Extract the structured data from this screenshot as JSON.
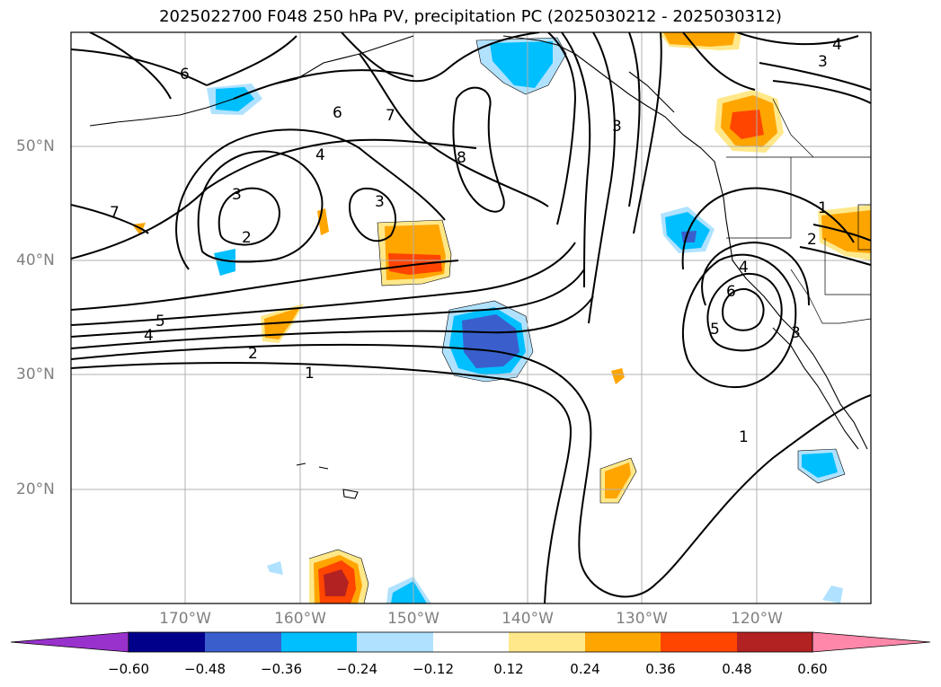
{
  "title": "2025022700 F048 250 hPa PV, precipitation PC (2025030212 - 2025030312)",
  "lat_labels": [
    "50°N",
    "40°N",
    "30°N",
    "20°N"
  ],
  "lon_labels": [
    "170°W",
    "160°W",
    "150°W",
    "140°W",
    "130°W",
    "120°W"
  ],
  "colorbar": {
    "ticks": [
      "−0.60",
      "−0.48",
      "−0.36",
      "−0.24",
      "−0.12",
      "0.12",
      "0.24",
      "0.36",
      "0.48",
      "0.60"
    ],
    "colors": [
      "#9932cc",
      "#00008b",
      "#3a5fcd",
      "#00bfff",
      "#b0e2ff",
      "#ffffff",
      "#ffe88a",
      "#ffa500",
      "#ff4500",
      "#b22222",
      "#ff88aa"
    ]
  },
  "contour_labels": [
    "6",
    "7",
    "6",
    "8",
    "4",
    "3",
    "3",
    "2",
    "7",
    "3",
    "5",
    "4",
    "2",
    "1",
    "4",
    "5",
    "3",
    "6",
    "1",
    "2",
    "1",
    "3",
    "4"
  ]
}
